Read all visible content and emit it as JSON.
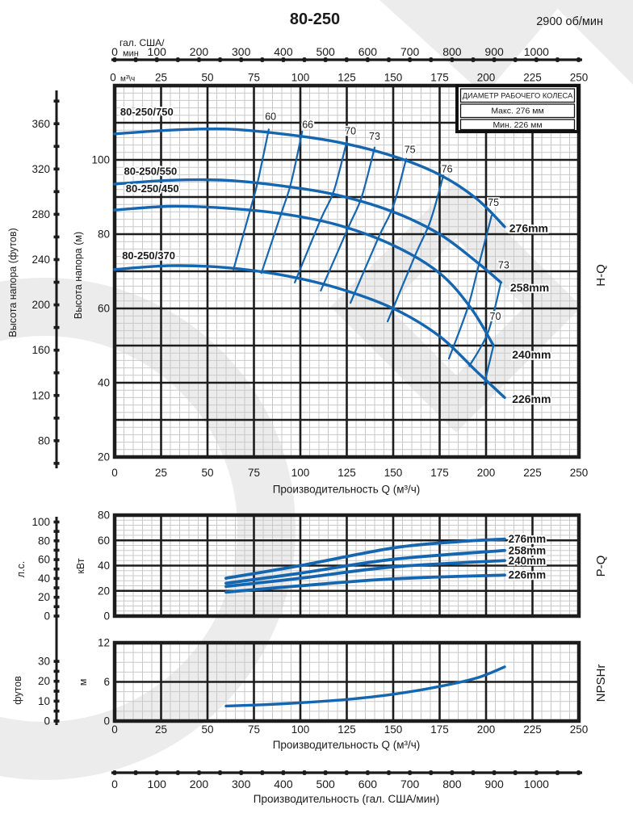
{
  "header": {
    "title": "80-250",
    "speed": "2900 об/мин"
  },
  "legend": {
    "header": "ДИАМЕТР РАБОЧЕГО КОЛЕСА",
    "max": "Макс. 276 мм",
    "min": "Мин. 226 мм"
  },
  "axis_labels": {
    "head_ft": "Высота напора (футов)",
    "head_m": "Высота напора (м)",
    "kw": "кВт",
    "hp": "л.с.",
    "m": "м",
    "ft": "футов",
    "q_m3h": "Производительность Q (м³/ч)",
    "q_gpm": "Производительность (гал. США/мин)",
    "gal_line1": "гал. США/",
    "gal_unit": "мин",
    "m3h_unit": "м³\\ч"
  },
  "colors": {
    "curve": "#1566b0",
    "grid_major": "#1d1d1d",
    "grid_minor": "#c9c9c9",
    "text": "#1a1a1a",
    "watermark": "#ececec",
    "bg": "#ffffff"
  },
  "scales": {
    "gpm": {
      "labels": [
        0,
        100,
        200,
        300,
        400,
        500,
        600,
        700,
        800,
        900,
        1000
      ],
      "tick_step": 50,
      "max_tick": 1100
    },
    "m3h_labels": [
      0,
      25,
      50,
      75,
      100,
      125,
      150,
      175,
      200,
      225,
      250
    ],
    "head_m_labels": [
      20,
      40,
      60,
      80,
      100
    ],
    "head_ft_labels": [
      80,
      120,
      160,
      200,
      240,
      280,
      320,
      360
    ],
    "kw_labels": [
      0,
      20,
      40,
      60,
      80
    ],
    "hp_labels": [
      0,
      20,
      40,
      60,
      80,
      100
    ],
    "npsh_m_labels": [
      0,
      6,
      12
    ],
    "npsh_ft_labels": [
      0,
      10,
      20,
      30
    ]
  },
  "chart_data": [
    {
      "id": "hq",
      "type": "line",
      "right_label": "H-Q",
      "xlabel": "Производительность Q (м³/ч)",
      "xlim": [
        0,
        250
      ],
      "ylim_m": [
        20,
        120
      ],
      "x_tick_labels": [
        0,
        25,
        50,
        75,
        100,
        125,
        150,
        175,
        200,
        225,
        250
      ],
      "series": [
        {
          "name": "276mm",
          "model": "80-250/750",
          "model_pos": [
            3,
            112
          ],
          "name_pos": [
            212.5,
            81.5
          ],
          "points": [
            [
              0,
              107
            ],
            [
              30,
              108
            ],
            [
              60,
              108.3
            ],
            [
              90,
              107
            ],
            [
              120,
              104.8
            ],
            [
              150,
              101
            ],
            [
              175,
              96
            ],
            [
              195,
              89.5
            ],
            [
              210,
              82
            ]
          ]
        },
        {
          "name": "258mm",
          "model": "80-250/550",
          "model_pos": [
            5,
            96
          ],
          "name_pos": [
            213,
            65.5
          ],
          "points": [
            [
              0,
              93.5
            ],
            [
              30,
              94.5
            ],
            [
              60,
              94.5
            ],
            [
              90,
              93
            ],
            [
              120,
              90.5
            ],
            [
              150,
              86
            ],
            [
              175,
              80
            ],
            [
              195,
              72.5
            ],
            [
              208,
              67
            ]
          ]
        },
        {
          "name": "240mm",
          "model": "80-250/450",
          "model_pos": [
            6,
            91.3
          ],
          "name_pos": [
            214,
            47.5
          ],
          "points": [
            [
              0,
              86.5
            ],
            [
              30,
              87.5
            ],
            [
              60,
              87
            ],
            [
              90,
              85.5
            ],
            [
              120,
              82.5
            ],
            [
              150,
              77
            ],
            [
              175,
              69.5
            ],
            [
              192,
              60
            ],
            [
              204,
              50
            ]
          ]
        },
        {
          "name": "226mm",
          "model": "80-250/370",
          "model_pos": [
            4,
            73.3
          ],
          "name_pos": [
            214,
            35.5
          ],
          "points": [
            [
              0,
              70.5
            ],
            [
              30,
              71.5
            ],
            [
              60,
              71
            ],
            [
              90,
              69
            ],
            [
              120,
              65.5
            ],
            [
              150,
              60
            ],
            [
              175,
              52.5
            ],
            [
              195,
              43
            ],
            [
              210,
              36
            ]
          ]
        }
      ],
      "efficiency_contours": [
        {
          "value": 60,
          "label_pos": [
            84,
            110.8
          ],
          "points": [
            [
              83,
              108.2
            ],
            [
              77,
              94
            ],
            [
              73,
              86.5
            ],
            [
              64,
              70.5
            ]
          ]
        },
        {
          "value": 66,
          "label_pos": [
            104,
            108.6
          ],
          "points": [
            [
              101,
              107.6
            ],
            [
              95,
              93.8
            ],
            [
              90,
              86
            ],
            [
              79,
              69.5
            ]
          ]
        },
        {
          "value": 70,
          "label_pos": [
            127,
            106.8
          ],
          "points": [
            [
              125,
              104.9
            ],
            [
              118,
              91.6
            ],
            [
              111,
              84
            ],
            [
              97,
              67
            ]
          ]
        },
        {
          "value": 73,
          "label_pos": [
            140,
            105.4
          ],
          "points": [
            [
              140,
              103.3
            ],
            [
              133,
              90
            ],
            [
              126,
              82
            ],
            [
              111,
              64.8
            ]
          ]
        },
        {
          "value": 75,
          "label_pos": [
            159,
            101.8
          ],
          "points": [
            [
              157,
              100.3
            ],
            [
              150,
              87.5
            ],
            [
              142,
              79
            ],
            [
              127,
              61.5
            ]
          ]
        },
        {
          "value": 76,
          "label_pos": [
            179,
            96.6
          ],
          "points": [
            [
              177,
              95.8
            ],
            [
              170,
              83.5
            ],
            [
              162,
              74.5
            ],
            [
              147,
              56.5
            ]
          ]
        },
        {
          "value": 75,
          "label_pos": [
            204,
            87.6
          ],
          "points": [
            [
              203,
              85
            ],
            [
              196,
              71.5
            ],
            [
              190,
              60
            ],
            [
              180,
              46.5
            ]
          ]
        },
        {
          "value": 73,
          "label_pos": [
            209.5,
            70.8
          ],
          "points": [
            [
              208,
              67
            ],
            [
              201,
              53.5
            ],
            [
              191,
              44.5
            ]
          ]
        },
        {
          "value": 70,
          "label_pos": [
            205,
            57
          ],
          "points": [
            [
              204,
              50
            ],
            [
              199,
              39.5
            ]
          ]
        }
      ]
    },
    {
      "id": "pq",
      "type": "line",
      "right_label": "P-Q",
      "ylim_kw": [
        0,
        80
      ],
      "series": [
        {
          "name": "276mm",
          "name_pos": [
            212,
            61
          ],
          "points": [
            [
              60,
              30
            ],
            [
              100,
              40
            ],
            [
              150,
              54
            ],
            [
              185,
              59
            ],
            [
              210,
              61
            ]
          ]
        },
        {
          "name": "258mm",
          "name_pos": [
            212,
            52
          ],
          "points": [
            [
              60,
              26
            ],
            [
              100,
              34
            ],
            [
              150,
              45
            ],
            [
              210,
              52
            ]
          ]
        },
        {
          "name": "240mm",
          "name_pos": [
            212,
            44
          ],
          "points": [
            [
              60,
              23.5
            ],
            [
              100,
              30
            ],
            [
              150,
              39
            ],
            [
              210,
              44
            ]
          ]
        },
        {
          "name": "226mm",
          "name_pos": [
            212,
            32.5
          ],
          "points": [
            [
              60,
              19
            ],
            [
              100,
              24
            ],
            [
              150,
              29.5
            ],
            [
              210,
              32.5
            ]
          ]
        }
      ]
    },
    {
      "id": "npsh",
      "type": "line",
      "right_label": "NPSHr",
      "xlabel": "Производительность Q (м³/ч)",
      "ylim_m": [
        0,
        12
      ],
      "x_tick_labels": [
        0,
        25,
        50,
        75,
        100,
        125,
        150,
        175,
        200,
        225,
        250
      ],
      "series": [
        {
          "name": "NPSHr",
          "points": [
            [
              60,
              2.3
            ],
            [
              80,
              2.5
            ],
            [
              100,
              2.8
            ],
            [
              125,
              3.3
            ],
            [
              150,
              4.1
            ],
            [
              175,
              5.3
            ],
            [
              195,
              6.6
            ],
            [
              210,
              8.3
            ]
          ]
        }
      ]
    }
  ]
}
